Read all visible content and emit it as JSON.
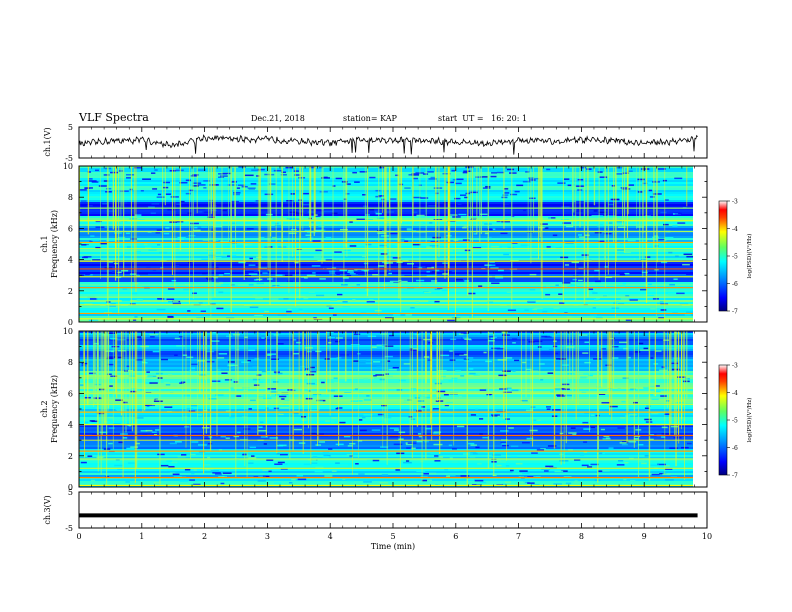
{
  "header": {
    "title": "VLF Spectra",
    "date": "Dec.21, 2018",
    "station": "station= KAP",
    "start": "start  UT =   16: 20: 1"
  },
  "chart_data": [
    {
      "type": "line",
      "panel": "ch1-waveform",
      "ylabel": "ch.1(V)",
      "ylim": [
        -5,
        5
      ],
      "yticks": [
        "5",
        "-5"
      ],
      "xlim": [
        0,
        10
      ],
      "note": "noisy waveform hovering around 0 to +2 V with short negative spikes",
      "sample_x_min": [
        0.0,
        0.5,
        1.0,
        1.5,
        2.0,
        2.5,
        3.0,
        3.5,
        4.0,
        4.5,
        5.0,
        5.5,
        6.0,
        6.5,
        7.0,
        7.5,
        8.0,
        8.5,
        9.0,
        9.5,
        9.85
      ],
      "sample_y_V": [
        -0.5,
        0.5,
        0.8,
        -1.0,
        1.5,
        1.2,
        1.0,
        0.5,
        -0.2,
        1.0,
        0.8,
        0.5,
        0.2,
        -0.3,
        0.6,
        0.3,
        0.8,
        0.6,
        -0.2,
        0.4,
        1.3
      ]
    },
    {
      "type": "heatmap",
      "panel": "ch1-spectrogram",
      "ylabel_top": "ch.1",
      "ylabel": "Frequency (kHz)",
      "ylim": [
        0,
        10
      ],
      "yticks": [
        "0",
        "2",
        "4",
        "6",
        "8",
        "10"
      ],
      "xlim": [
        0,
        10
      ],
      "colorbar": {
        "label": "log(PSD)(V²/Hz)",
        "range": [
          -7,
          -3
        ],
        "ticks": [
          "-3",
          "-4",
          "-5",
          "-6",
          "-7"
        ]
      }
    },
    {
      "type": "heatmap",
      "panel": "ch2-spectrogram",
      "ylabel_top": "ch.2",
      "ylabel": "Frequency (kHz)",
      "ylim": [
        0,
        10
      ],
      "yticks": [
        "0",
        "2",
        "4",
        "6",
        "8",
        "10"
      ],
      "xlim": [
        0,
        10
      ],
      "colorbar": {
        "label": "log(PSD)(V²/Hz)",
        "range": [
          -7,
          -3
        ],
        "ticks": [
          "-3",
          "-4",
          "-5",
          "-6",
          "-7"
        ]
      }
    },
    {
      "type": "line",
      "panel": "ch3-waveform",
      "ylabel": "ch.3(V)",
      "ylim": [
        -5,
        5
      ],
      "yticks": [
        "5",
        "-5"
      ],
      "xlim": [
        0,
        10
      ],
      "xlabel": "Time (min)",
      "xticks": [
        "0",
        "1",
        "2",
        "3",
        "4",
        "5",
        "6",
        "7",
        "8",
        "9",
        "10"
      ],
      "x": [
        0,
        9.85
      ],
      "y": [
        -1.5,
        -1.5
      ]
    }
  ],
  "colors": {
    "cmap": [
      "#00007f",
      "#0000ff",
      "#0080ff",
      "#00ffff",
      "#80ff80",
      "#ffff00",
      "#ff8000",
      "#ff0000",
      "#ffffff"
    ]
  }
}
